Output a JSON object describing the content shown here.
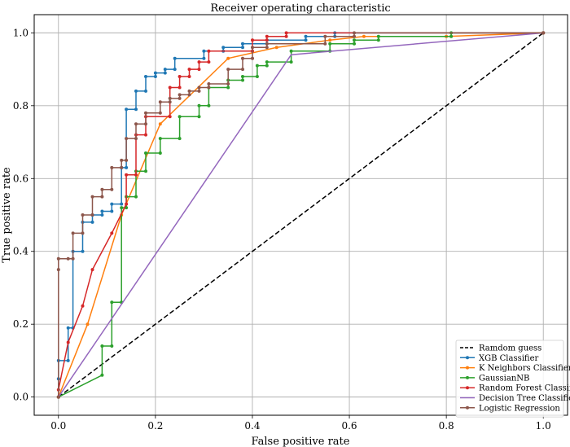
{
  "chart_data": {
    "type": "line",
    "title": "Receiver operating characteristic",
    "xlabel": "False positive rate",
    "ylabel": "True positive rate",
    "xlim": [
      -0.05,
      1.05
    ],
    "ylim": [
      -0.05,
      1.05
    ],
    "xticks": [
      "0.0",
      "0.2",
      "0.4",
      "0.6",
      "0.8",
      "1.0"
    ],
    "yticks": [
      "0.0",
      "0.2",
      "0.4",
      "0.6",
      "0.8",
      "1.0"
    ],
    "grid": true,
    "legend_position": "lower-right",
    "series": [
      {
        "name": "Ramdom guess",
        "color": "#000000",
        "dashed": true,
        "markers": false,
        "points": [
          [
            0,
            0
          ],
          [
            1,
            1
          ]
        ]
      },
      {
        "name": "XGB Classifier",
        "color": "#1f77b4",
        "dashed": false,
        "markers": true,
        "points": [
          [
            0,
            0
          ],
          [
            0,
            0.05
          ],
          [
            0,
            0.1
          ],
          [
            0.02,
            0.1
          ],
          [
            0.02,
            0.19
          ],
          [
            0.03,
            0.19
          ],
          [
            0.03,
            0.4
          ],
          [
            0.05,
            0.4
          ],
          [
            0.05,
            0.48
          ],
          [
            0.07,
            0.48
          ],
          [
            0.07,
            0.5
          ],
          [
            0.09,
            0.5
          ],
          [
            0.09,
            0.51
          ],
          [
            0.11,
            0.51
          ],
          [
            0.11,
            0.53
          ],
          [
            0.13,
            0.53
          ],
          [
            0.13,
            0.63
          ],
          [
            0.14,
            0.63
          ],
          [
            0.14,
            0.79
          ],
          [
            0.16,
            0.79
          ],
          [
            0.16,
            0.84
          ],
          [
            0.18,
            0.84
          ],
          [
            0.18,
            0.88
          ],
          [
            0.2,
            0.88
          ],
          [
            0.2,
            0.89
          ],
          [
            0.22,
            0.89
          ],
          [
            0.22,
            0.9
          ],
          [
            0.24,
            0.9
          ],
          [
            0.24,
            0.93
          ],
          [
            0.3,
            0.93
          ],
          [
            0.3,
            0.95
          ],
          [
            0.34,
            0.95
          ],
          [
            0.34,
            0.96
          ],
          [
            0.38,
            0.96
          ],
          [
            0.38,
            0.97
          ],
          [
            0.43,
            0.97
          ],
          [
            0.43,
            0.98
          ],
          [
            0.51,
            0.98
          ],
          [
            0.51,
            0.99
          ],
          [
            0.57,
            0.99
          ],
          [
            0.57,
            1.0
          ],
          [
            1.0,
            1.0
          ]
        ]
      },
      {
        "name": "K Neighbors Classifier",
        "color": "#ff7f0e",
        "dashed": false,
        "markers": true,
        "points": [
          [
            0,
            0
          ],
          [
            0.06,
            0.2
          ],
          [
            0.13,
            0.5
          ],
          [
            0.21,
            0.75
          ],
          [
            0.35,
            0.93
          ],
          [
            0.45,
            0.96
          ],
          [
            0.56,
            0.98
          ],
          [
            0.63,
            0.99
          ],
          [
            0.8,
            0.99
          ],
          [
            1.0,
            1.0
          ]
        ]
      },
      {
        "name": "GaussianNB",
        "color": "#2ca02c",
        "dashed": false,
        "markers": true,
        "points": [
          [
            0,
            0
          ],
          [
            0.09,
            0.06
          ],
          [
            0.09,
            0.14
          ],
          [
            0.11,
            0.14
          ],
          [
            0.11,
            0.26
          ],
          [
            0.13,
            0.26
          ],
          [
            0.13,
            0.52
          ],
          [
            0.14,
            0.52
          ],
          [
            0.14,
            0.55
          ],
          [
            0.16,
            0.55
          ],
          [
            0.16,
            0.62
          ],
          [
            0.18,
            0.62
          ],
          [
            0.18,
            0.67
          ],
          [
            0.21,
            0.67
          ],
          [
            0.21,
            0.71
          ],
          [
            0.25,
            0.71
          ],
          [
            0.25,
            0.77
          ],
          [
            0.29,
            0.77
          ],
          [
            0.29,
            0.8
          ],
          [
            0.31,
            0.8
          ],
          [
            0.31,
            0.85
          ],
          [
            0.35,
            0.85
          ],
          [
            0.35,
            0.87
          ],
          [
            0.38,
            0.87
          ],
          [
            0.38,
            0.88
          ],
          [
            0.41,
            0.88
          ],
          [
            0.41,
            0.91
          ],
          [
            0.43,
            0.91
          ],
          [
            0.43,
            0.92
          ],
          [
            0.48,
            0.92
          ],
          [
            0.48,
            0.95
          ],
          [
            0.56,
            0.95
          ],
          [
            0.56,
            0.97
          ],
          [
            0.61,
            0.97
          ],
          [
            0.61,
            0.98
          ],
          [
            0.66,
            0.98
          ],
          [
            0.66,
            0.99
          ],
          [
            0.81,
            0.99
          ],
          [
            0.81,
            1.0
          ],
          [
            1.0,
            1.0
          ]
        ]
      },
      {
        "name": "Random Forest Classifier",
        "color": "#d62728",
        "dashed": false,
        "markers": true,
        "points": [
          [
            0,
            0
          ],
          [
            0,
            0.02
          ],
          [
            0.02,
            0.15
          ],
          [
            0.05,
            0.25
          ],
          [
            0.07,
            0.35
          ],
          [
            0.11,
            0.45
          ],
          [
            0.14,
            0.53
          ],
          [
            0.14,
            0.61
          ],
          [
            0.16,
            0.61
          ],
          [
            0.16,
            0.72
          ],
          [
            0.18,
            0.72
          ],
          [
            0.18,
            0.77
          ],
          [
            0.23,
            0.77
          ],
          [
            0.23,
            0.85
          ],
          [
            0.25,
            0.85
          ],
          [
            0.25,
            0.88
          ],
          [
            0.27,
            0.88
          ],
          [
            0.27,
            0.9
          ],
          [
            0.29,
            0.9
          ],
          [
            0.29,
            0.92
          ],
          [
            0.31,
            0.92
          ],
          [
            0.31,
            0.95
          ],
          [
            0.4,
            0.95
          ],
          [
            0.4,
            0.98
          ],
          [
            0.43,
            0.98
          ],
          [
            0.43,
            0.99
          ],
          [
            0.47,
            0.99
          ],
          [
            0.47,
            1.0
          ],
          [
            1.0,
            1.0
          ]
        ]
      },
      {
        "name": "Decision Tree Classifier",
        "color": "#9467bd",
        "dashed": false,
        "markers": false,
        "points": [
          [
            0,
            0
          ],
          [
            0.48,
            0.94
          ],
          [
            1.0,
            1.0
          ]
        ]
      },
      {
        "name": "Logistic Regression",
        "color": "#8c564b",
        "dashed": false,
        "markers": true,
        "points": [
          [
            0,
            0
          ],
          [
            0,
            0.35
          ],
          [
            0,
            0.38
          ],
          [
            0.02,
            0.38
          ],
          [
            0.03,
            0.38
          ],
          [
            0.03,
            0.45
          ],
          [
            0.05,
            0.45
          ],
          [
            0.05,
            0.5
          ],
          [
            0.07,
            0.5
          ],
          [
            0.07,
            0.55
          ],
          [
            0.09,
            0.55
          ],
          [
            0.09,
            0.57
          ],
          [
            0.11,
            0.57
          ],
          [
            0.11,
            0.63
          ],
          [
            0.13,
            0.63
          ],
          [
            0.13,
            0.65
          ],
          [
            0.14,
            0.65
          ],
          [
            0.14,
            0.71
          ],
          [
            0.16,
            0.71
          ],
          [
            0.16,
            0.75
          ],
          [
            0.18,
            0.75
          ],
          [
            0.18,
            0.78
          ],
          [
            0.21,
            0.78
          ],
          [
            0.21,
            0.81
          ],
          [
            0.23,
            0.81
          ],
          [
            0.23,
            0.82
          ],
          [
            0.25,
            0.82
          ],
          [
            0.25,
            0.83
          ],
          [
            0.27,
            0.83
          ],
          [
            0.27,
            0.84
          ],
          [
            0.29,
            0.84
          ],
          [
            0.29,
            0.85
          ],
          [
            0.31,
            0.85
          ],
          [
            0.31,
            0.86
          ],
          [
            0.35,
            0.86
          ],
          [
            0.35,
            0.9
          ],
          [
            0.38,
            0.9
          ],
          [
            0.38,
            0.93
          ],
          [
            0.4,
            0.93
          ],
          [
            0.4,
            0.96
          ],
          [
            0.43,
            0.96
          ],
          [
            0.43,
            0.97
          ],
          [
            0.55,
            0.97
          ],
          [
            0.55,
            0.99
          ],
          [
            0.61,
            0.99
          ],
          [
            0.61,
            1.0
          ],
          [
            1.0,
            1.0
          ]
        ]
      }
    ]
  }
}
